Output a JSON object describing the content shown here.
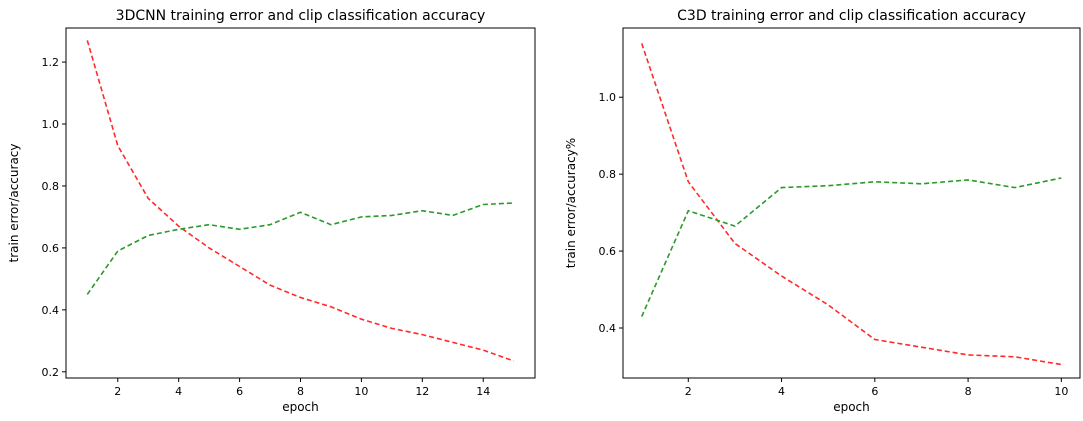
{
  "chart_data": [
    {
      "type": "line",
      "title": "3DCNN training error and clip classification accuracy",
      "xlabel": "epoch",
      "ylabel": "train error/accuracy",
      "xlim": [
        0.3,
        15.7
      ],
      "ylim": [
        0.18,
        1.31
      ],
      "xticks": [
        2,
        4,
        6,
        8,
        10,
        12,
        14
      ],
      "yticks": [
        0.2,
        0.4,
        0.6,
        0.8,
        1.0,
        1.2
      ],
      "grid": false,
      "x": [
        1,
        2,
        3,
        4,
        5,
        6,
        7,
        8,
        9,
        10,
        11,
        12,
        13,
        14,
        15
      ],
      "series": [
        {
          "color": "#ff2a2a",
          "style": "dashed",
          "values": [
            1.27,
            0.93,
            0.76,
            0.67,
            0.6,
            0.54,
            0.48,
            0.44,
            0.41,
            0.37,
            0.34,
            0.32,
            0.295,
            0.27,
            0.235
          ]
        },
        {
          "color": "#2a9a2a",
          "style": "dashed",
          "values": [
            0.45,
            0.59,
            0.64,
            0.66,
            0.675,
            0.66,
            0.675,
            0.715,
            0.675,
            0.7,
            0.705,
            0.72,
            0.705,
            0.74,
            0.745
          ]
        }
      ]
    },
    {
      "type": "line",
      "title": "C3D training error and clip classification accuracy",
      "xlabel": "epoch",
      "ylabel": "train error/accuracy%",
      "xlim": [
        0.6,
        10.4
      ],
      "ylim": [
        0.27,
        1.18
      ],
      "xticks": [
        2,
        4,
        6,
        8,
        10
      ],
      "yticks": [
        0.4,
        0.6,
        0.8,
        1.0
      ],
      "grid": false,
      "x": [
        1,
        2,
        3,
        4,
        5,
        6,
        7,
        8,
        9,
        10
      ],
      "series": [
        {
          "color": "#ff2a2a",
          "style": "dashed",
          "values": [
            1.14,
            0.78,
            0.62,
            0.535,
            0.46,
            0.37,
            0.35,
            0.33,
            0.325,
            0.305
          ]
        },
        {
          "color": "#2a9a2a",
          "style": "dashed",
          "values": [
            0.43,
            0.705,
            0.665,
            0.765,
            0.77,
            0.78,
            0.775,
            0.785,
            0.765,
            0.79
          ]
        }
      ]
    }
  ]
}
